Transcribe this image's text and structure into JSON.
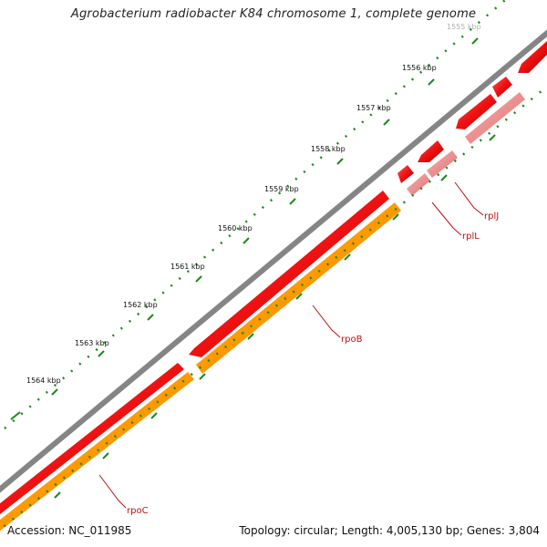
{
  "title": "Agrobacterium radiobacter K84 chromosome 1, complete genome",
  "footer": {
    "accession": "Accession: NC_011985",
    "summary": "Topology: circular; Length: 4,005,130 bp; Genes: 3,804"
  },
  "ticks": [
    "1555 kbp",
    "1556 kbp",
    "1557 kbp",
    "1558 kbp",
    "1559 kbp",
    "1560 kbp",
    "1561 kbp",
    "1562 kbp",
    "1563 kbp",
    "1564 kbp"
  ],
  "genes": [
    "rplJ",
    "rplL",
    "rpoB",
    "rpoC"
  ],
  "colors": {
    "backbone": "#858585",
    "cds": "#ee1111",
    "rna_pale": "#f08a8a",
    "gene": "#ff9900",
    "tick": "#1a8a1a",
    "label": "#c01010"
  }
}
